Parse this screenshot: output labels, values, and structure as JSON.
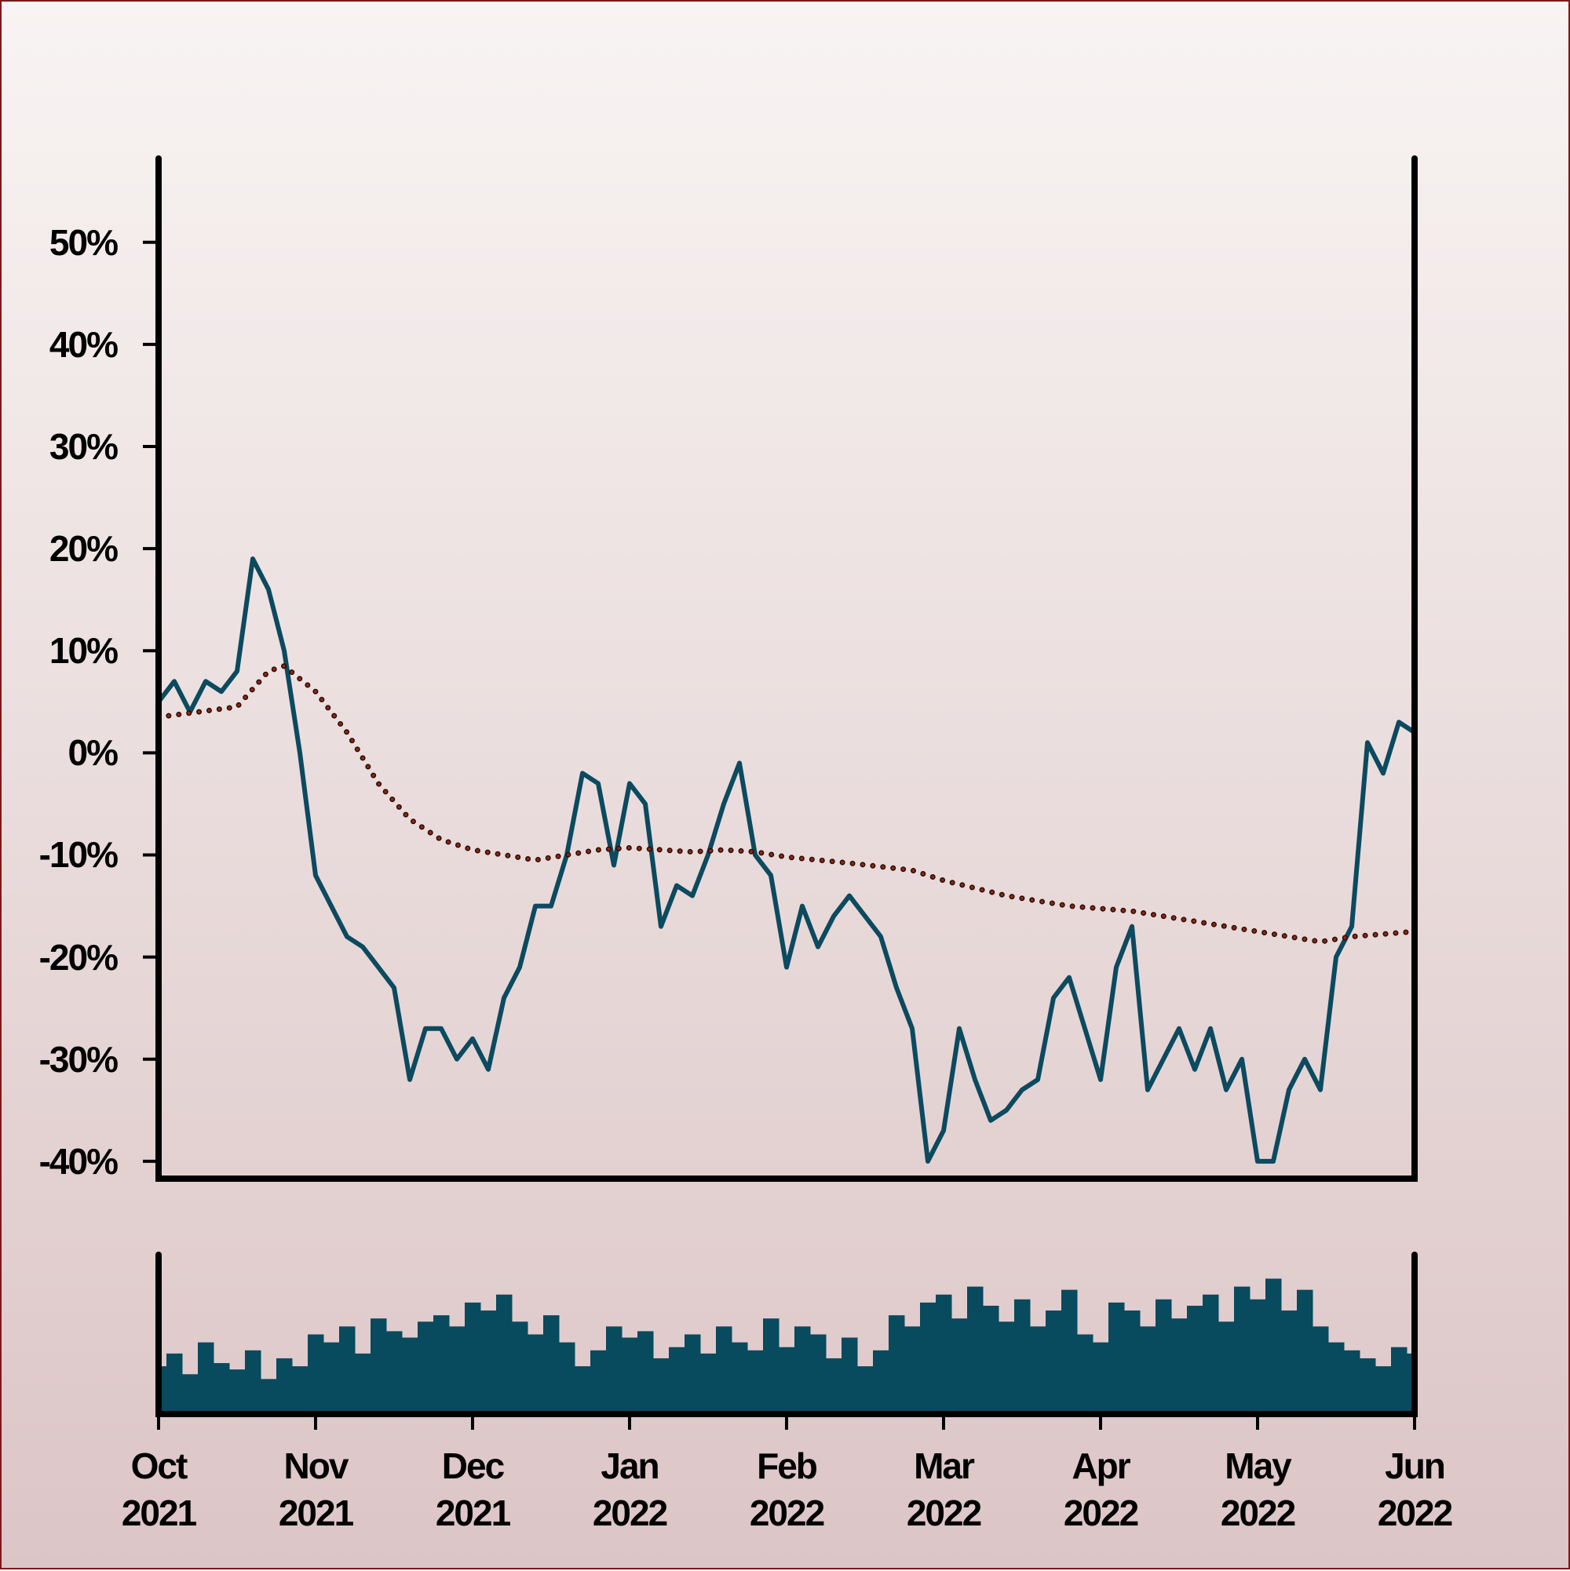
{
  "chart_data": [
    {
      "type": "line",
      "xlim": [
        0,
        8
      ],
      "ylim": [
        -41.7,
        58.2
      ],
      "yticks": [
        {
          "value": 50,
          "label": "50%"
        },
        {
          "value": 40,
          "label": "40%"
        },
        {
          "value": 30,
          "label": "30%"
        },
        {
          "value": 20,
          "label": "20%"
        },
        {
          "value": 10,
          "label": "10%"
        },
        {
          "value": 0,
          "label": "0%"
        },
        {
          "value": -10,
          "label": "-10%"
        },
        {
          "value": -20,
          "label": "-20%"
        },
        {
          "value": -30,
          "label": "-30%"
        },
        {
          "value": -40,
          "label": "-40%"
        }
      ],
      "series": [
        {
          "color": "#0b4a5f",
          "style": "solid",
          "x": [
            0,
            0.1,
            0.2,
            0.3,
            0.4,
            0.5,
            0.6,
            0.7,
            0.8,
            0.9,
            1,
            1.1,
            1.2,
            1.3,
            1.4,
            1.5,
            1.6,
            1.7,
            1.8,
            1.9,
            2,
            2.1,
            2.2,
            2.3,
            2.4,
            2.5,
            2.6,
            2.7,
            2.8,
            2.9,
            3,
            3.1,
            3.2,
            3.3,
            3.4,
            3.5,
            3.6,
            3.7,
            3.8,
            3.9,
            4,
            4.1,
            4.2,
            4.3,
            4.4,
            4.5,
            4.6,
            4.7,
            4.8,
            4.9,
            5,
            5.1,
            5.2,
            5.3,
            5.4,
            5.5,
            5.6,
            5.7,
            5.8,
            5.9,
            6,
            6.1,
            6.2,
            6.3,
            6.4,
            6.5,
            6.6,
            6.7,
            6.8,
            6.9,
            7,
            7.1,
            7.2,
            7.3,
            7.4,
            7.5,
            7.6,
            7.7,
            7.8,
            7.9,
            8
          ],
          "values": [
            5,
            7,
            4,
            7,
            6,
            8,
            19,
            16,
            10,
            0,
            -12,
            -15,
            -18,
            -19,
            -21,
            -23,
            -32,
            -27,
            -27,
            -30,
            -28,
            -31,
            -24,
            -21,
            -15,
            -15,
            -10,
            -2,
            -3,
            -11,
            -3,
            -5,
            -17,
            -13,
            -14,
            -10,
            -5,
            -1,
            -10,
            -12,
            -21,
            -15,
            -19,
            -16,
            -14,
            -16,
            -18,
            -23,
            -27,
            -40,
            -37,
            -27,
            -32,
            -36,
            -35,
            -33,
            -32,
            -24,
            -22,
            -27,
            -32,
            -21,
            -17,
            -33,
            -30,
            -27,
            -31,
            -27,
            -33,
            -30,
            -40,
            -40,
            -33,
            -30,
            -33,
            -20,
            -17,
            1,
            -2,
            3,
            2
          ]
        },
        {
          "color": "#8b2a10",
          "style": "dotted",
          "x": [
            0,
            0.5,
            0.7,
            0.8,
            1,
            1.2,
            1.4,
            1.6,
            1.8,
            2,
            2.2,
            2.4,
            2.6,
            2.8,
            3,
            3.2,
            3.4,
            3.6,
            3.8,
            4,
            4.4,
            4.8,
            5,
            5.4,
            5.8,
            6.2,
            6.6,
            7,
            7.4,
            7.6,
            8
          ],
          "values": [
            3.5,
            4.5,
            8,
            8.5,
            6,
            2,
            -3,
            -6.5,
            -8.5,
            -9.5,
            -10,
            -10.5,
            -10,
            -9.5,
            -9.3,
            -9.5,
            -9.7,
            -9.5,
            -9.7,
            -10.2,
            -10.8,
            -11.5,
            -12.5,
            -14,
            -15,
            -15.5,
            -16.5,
            -17.5,
            -18.5,
            -18,
            -17.5
          ]
        }
      ]
    },
    {
      "type": "bar",
      "xlim": [
        0,
        8
      ],
      "ylim": [
        0,
        100
      ],
      "color": "#084a5e",
      "xticks": [
        {
          "value": 0,
          "label": "Oct\n2021"
        },
        {
          "value": 1,
          "label": "Nov\n2021"
        },
        {
          "value": 2,
          "label": "Dec\n2021"
        },
        {
          "value": 3,
          "label": "Jan\n2022"
        },
        {
          "value": 4,
          "label": "Feb\n2022"
        },
        {
          "value": 5,
          "label": "Mar\n2022"
        },
        {
          "value": 6,
          "label": "Apr\n2022"
        },
        {
          "value": 7,
          "label": "May\n2022"
        },
        {
          "value": 8,
          "label": "Jun\n2022"
        }
      ],
      "x": [
        0,
        0.1,
        0.2,
        0.3,
        0.4,
        0.5,
        0.6,
        0.7,
        0.8,
        0.9,
        1,
        1.1,
        1.2,
        1.3,
        1.4,
        1.5,
        1.6,
        1.7,
        1.8,
        1.9,
        2,
        2.1,
        2.2,
        2.3,
        2.4,
        2.5,
        2.6,
        2.7,
        2.8,
        2.9,
        3,
        3.1,
        3.2,
        3.3,
        3.4,
        3.5,
        3.6,
        3.7,
        3.8,
        3.9,
        4,
        4.1,
        4.2,
        4.3,
        4.4,
        4.5,
        4.6,
        4.7,
        4.8,
        4.9,
        5,
        5.1,
        5.2,
        5.3,
        5.4,
        5.5,
        5.6,
        5.7,
        5.8,
        5.9,
        6,
        6.1,
        6.2,
        6.3,
        6.4,
        6.5,
        6.6,
        6.7,
        6.8,
        6.9,
        7,
        7.1,
        7.2,
        7.3,
        7.4,
        7.5,
        7.6,
        7.7,
        7.8,
        7.9,
        8
      ],
      "values": [
        30,
        38,
        25,
        45,
        32,
        28,
        40,
        22,
        35,
        30,
        50,
        45,
        55,
        38,
        60,
        52,
        48,
        58,
        62,
        55,
        70,
        65,
        75,
        58,
        50,
        62,
        45,
        30,
        40,
        55,
        48,
        52,
        35,
        42,
        50,
        38,
        55,
        45,
        40,
        60,
        42,
        55,
        50,
        35,
        48,
        30,
        40,
        62,
        55,
        70,
        75,
        60,
        80,
        68,
        58,
        72,
        55,
        65,
        78,
        50,
        45,
        70,
        65,
        55,
        72,
        60,
        68,
        75,
        58,
        80,
        72,
        85,
        65,
        78,
        55,
        45,
        40,
        35,
        30,
        42,
        38
      ]
    }
  ]
}
